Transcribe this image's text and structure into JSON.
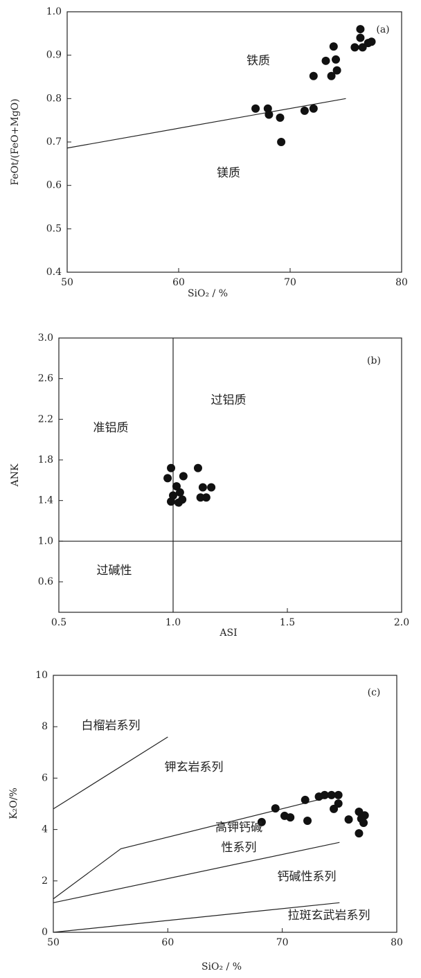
{
  "chart_data": [
    {
      "type": "scatter",
      "panel_label": "(a)",
      "xlabel": "SiO₂ / %",
      "ylabel": "FeOt/(FeO+MgO)",
      "xlim": [
        50,
        80
      ],
      "ylim": [
        0.4,
        1.0
      ],
      "xticks": [
        50,
        60,
        70,
        80
      ],
      "yticks": [
        0.4,
        0.5,
        0.6,
        0.7,
        0.8,
        0.9,
        {
          "value": 1,
          "label": "1.0"
        }
      ],
      "color": "#111111",
      "x": [
        66.9,
        68.0,
        68.1,
        69.1,
        69.2,
        71.3,
        72.1,
        72.1,
        73.2,
        73.9,
        73.7,
        74.2,
        74.1,
        76.3,
        76.3,
        75.8,
        76.5,
        77.0,
        77.3
      ],
      "values": [
        0.777,
        0.777,
        0.763,
        0.756,
        0.7,
        0.772,
        0.777,
        0.852,
        0.887,
        0.92,
        0.852,
        0.865,
        0.89,
        0.96,
        0.94,
        0.918,
        0.918,
        0.928,
        0.931
      ],
      "lines": [
        {
          "x": [
            50,
            75
          ],
          "y": [
            0.686,
            0.8
          ]
        }
      ],
      "annotations": [
        "铁质",
        "镁质"
      ]
    },
    {
      "type": "scatter",
      "panel_label": "(b)",
      "xlabel": "ASI",
      "ylabel": "ANK",
      "xlim": [
        0.5,
        2.0
      ],
      "ylim": [
        0.3,
        3.0
      ],
      "xticks": [
        0.5,
        {
          "value": 1,
          "label": "1.0"
        },
        1.5,
        {
          "value": 2,
          "label": "2.0"
        }
      ],
      "yticks": [
        0.6,
        {
          "value": 1,
          "label": "1.0"
        },
        1.4,
        1.8,
        2.2,
        2.6,
        {
          "value": 3,
          "label": "3.0"
        }
      ],
      "color": "#111111",
      "x": [
        0.991,
        1.045,
        1.109,
        0.976,
        1.015,
        1.03,
        1.0,
        1.04,
        0.991,
        1.13,
        1.167,
        1.12,
        1.145,
        1.024
      ],
      "values": [
        1.72,
        1.64,
        1.72,
        1.62,
        1.54,
        1.48,
        1.45,
        1.41,
        1.39,
        1.53,
        1.53,
        1.43,
        1.43,
        1.38
      ],
      "lines": [
        {
          "x": [
            1,
            1
          ],
          "y": [
            0.3,
            3
          ]
        },
        {
          "x": [
            0.5,
            2
          ],
          "y": [
            1,
            1
          ]
        }
      ],
      "annotations": [
        "过铝质",
        "准铝质",
        "过碱性"
      ]
    },
    {
      "type": "scatter",
      "panel_label": "(c)",
      "xlabel": "SiO₂ / %",
      "ylabel": "K₂O/%",
      "xlim": [
        50,
        80
      ],
      "ylim": [
        0,
        10
      ],
      "xticks": [
        50,
        60,
        70,
        80
      ],
      "yticks": [
        0,
        2,
        4,
        6,
        8,
        10
      ],
      "color": "#111111",
      "x": [
        68.2,
        69.4,
        70.2,
        70.7,
        72.0,
        72.2,
        73.2,
        73.7,
        74.3,
        74.9,
        74.9,
        74.5,
        75.8,
        76.7,
        76.9,
        77.2,
        76.7,
        77.1
      ],
      "values": [
        4.29,
        4.82,
        4.53,
        4.47,
        5.15,
        4.34,
        5.28,
        5.34,
        5.34,
        5.34,
        5.01,
        4.8,
        4.39,
        4.69,
        4.42,
        4.55,
        3.85,
        4.26
      ],
      "lines": [
        {
          "x": [
            50,
            60
          ],
          "y": [
            4.8,
            7.6
          ]
        },
        {
          "x": [
            50,
            55.9,
            74
          ],
          "y": [
            1.3,
            3.25,
            5.25
          ]
        },
        {
          "x": [
            50,
            75
          ],
          "y": [
            1.15,
            3.5
          ]
        },
        {
          "x": [
            50,
            75
          ],
          "y": [
            0,
            1.15
          ]
        }
      ],
      "annotations": [
        "白榴岩系列",
        "钾玄岩系列",
        "高钾钙碱",
        "性系列",
        "钙碱性系列",
        "拉斑玄武岩系列"
      ]
    }
  ]
}
